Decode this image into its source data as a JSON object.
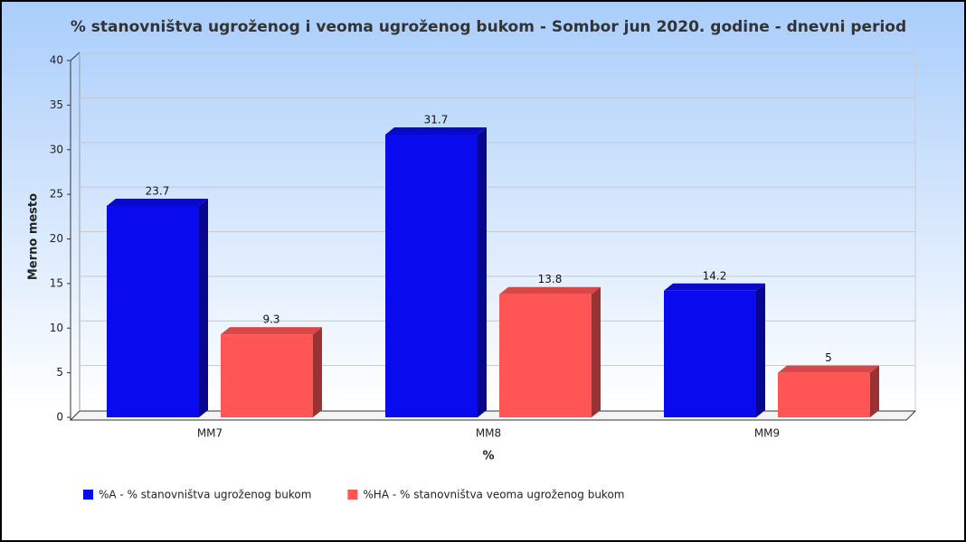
{
  "chart_data": {
    "type": "bar",
    "title": "% stanovništva ugroženog i veoma ugroženog bukom - Sombor jun 2020. godine - dnevni period",
    "x_label": "%",
    "y_label": "Merno mesto",
    "categories": [
      "MM7",
      "MM8",
      "MM9"
    ],
    "series": [
      {
        "name": "%A - % stanovništva ugroženog bukom",
        "color": "#0a0aee",
        "values": [
          23.7,
          31.7,
          14.2
        ]
      },
      {
        "name": "%HA - % stanovništva veoma ugroženog bukom",
        "color": "#ff5555",
        "values": [
          9.3,
          13.8,
          5
        ]
      }
    ],
    "ylim": [
      0,
      40
    ],
    "yticks": [
      0,
      5,
      10,
      15,
      20,
      25,
      30,
      35,
      40
    ],
    "grid": true,
    "legend": "bottom-left"
  }
}
